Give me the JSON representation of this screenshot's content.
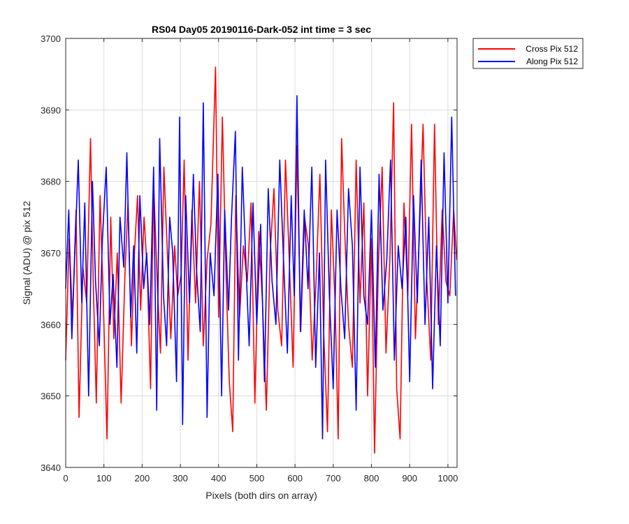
{
  "chart_data": {
    "type": "line",
    "title": "RS04 Day05 20190116-Dark-052 int time = 3 sec",
    "xlabel": "Pixels (both dirs on array)",
    "ylabel": "Signal (ADU) @ pix 512",
    "xlim": [
      0,
      1024
    ],
    "ylim": [
      3640,
      3700
    ],
    "xticks": [
      0,
      100,
      200,
      300,
      400,
      500,
      600,
      700,
      800,
      900,
      1000
    ],
    "yticks": [
      3640,
      3650,
      3660,
      3670,
      3680,
      3690,
      3700
    ],
    "grid": true,
    "legend_position": "outside-top-right",
    "series": [
      {
        "name": "Cross Pix 512",
        "color": "#ff0000",
        "x": [
          0,
          9,
          18,
          27,
          35,
          45,
          55,
          65,
          72,
          80,
          90,
          100,
          108,
          118,
          126,
          135,
          145,
          155,
          163,
          172,
          180,
          188,
          196,
          205,
          213,
          222,
          230,
          240,
          248,
          257,
          266,
          275,
          285,
          293,
          302,
          310,
          320,
          330,
          340,
          350,
          360,
          370,
          380,
          392,
          400,
          410,
          420,
          428,
          437,
          445,
          455,
          465,
          475,
          485,
          495,
          505,
          515,
          525,
          535,
          545,
          555,
          565,
          575,
          585,
          595,
          605,
          615,
          625,
          635,
          645,
          655,
          665,
          675,
          685,
          695,
          705,
          713,
          722,
          730,
          740,
          750,
          760,
          770,
          780,
          790,
          800,
          808,
          818,
          828,
          838,
          848,
          858,
          866,
          875,
          885,
          895,
          905,
          915,
          925,
          935,
          945,
          955,
          965,
          975,
          985,
          995,
          1005,
          1015,
          1023
        ],
        "values": [
          3655,
          3672,
          3661,
          3676,
          3647,
          3668,
          3663,
          3686,
          3666,
          3649,
          3678,
          3660,
          3644,
          3675,
          3658,
          3670,
          3649,
          3667,
          3677,
          3657,
          3670,
          3678,
          3662,
          3675,
          3668,
          3651,
          3680,
          3665,
          3656,
          3682,
          3670,
          3658,
          3671,
          3664,
          3667,
          3683,
          3655,
          3676,
          3663,
          3680,
          3657,
          3669,
          3674,
          3696,
          3661,
          3689,
          3666,
          3652,
          3645,
          3678,
          3661,
          3671,
          3666,
          3677,
          3649,
          3673,
          3663,
          3648,
          3670,
          3679,
          3662,
          3657,
          3683,
          3669,
          3654,
          3685,
          3659,
          3675,
          3671,
          3655,
          3666,
          3681,
          3659,
          3645,
          3676,
          3663,
          3644,
          3686,
          3673,
          3660,
          3654,
          3683,
          3663,
          3677,
          3650,
          3672,
          3642,
          3668,
          3682,
          3656,
          3669,
          3691,
          3651,
          3644,
          3677,
          3664,
          3688,
          3658,
          3672,
          3688,
          3666,
          3655,
          3688,
          3660,
          3676,
          3666,
          3664,
          3676,
          3669
        ]
      },
      {
        "name": "Along Pix 512",
        "color": "#0000ff",
        "x": [
          0,
          8,
          16,
          24,
          33,
          42,
          50,
          60,
          70,
          78,
          88,
          96,
          106,
          116,
          124,
          134,
          142,
          152,
          160,
          170,
          178,
          186,
          194,
          204,
          212,
          220,
          230,
          238,
          246,
          256,
          264,
          272,
          280,
          290,
          298,
          306,
          314,
          324,
          334,
          342,
          352,
          360,
          370,
          378,
          388,
          398,
          408,
          416,
          426,
          434,
          444,
          452,
          462,
          472,
          480,
          490,
          500,
          510,
          520,
          530,
          540,
          550,
          560,
          570,
          580,
          590,
          598,
          605,
          614,
          624,
          634,
          644,
          654,
          664,
          672,
          680,
          690,
          700,
          710,
          720,
          730,
          740,
          750,
          760,
          770,
          780,
          790,
          800,
          810,
          820,
          830,
          840,
          850,
          860,
          870,
          880,
          890,
          900,
          910,
          920,
          930,
          940,
          950,
          960,
          970,
          980,
          990,
          1000,
          1010,
          1020
        ],
        "values": [
          3665,
          3676,
          3658,
          3670,
          3683,
          3663,
          3677,
          3650,
          3680,
          3666,
          3657,
          3672,
          3682,
          3660,
          3667,
          3654,
          3675,
          3668,
          3684,
          3661,
          3671,
          3656,
          3678,
          3665,
          3670,
          3660,
          3682,
          3648,
          3686,
          3664,
          3657,
          3675,
          3670,
          3652,
          3689,
          3646,
          3678,
          3663,
          3681,
          3668,
          3659,
          3691,
          3647,
          3670,
          3664,
          3681,
          3650,
          3676,
          3662,
          3675,
          3687,
          3655,
          3682,
          3668,
          3657,
          3677,
          3660,
          3674,
          3652,
          3679,
          3666,
          3660,
          3683,
          3669,
          3656,
          3678,
          3664,
          3692,
          3659,
          3676,
          3665,
          3682,
          3654,
          3670,
          3644,
          3683,
          3664,
          3651,
          3676,
          3665,
          3658,
          3679,
          3671,
          3648,
          3682,
          3664,
          3660,
          3676,
          3654,
          3681,
          3662,
          3669,
          3683,
          3655,
          3671,
          3665,
          3675,
          3652,
          3678,
          3663,
          3683,
          3660,
          3675,
          3651,
          3671,
          3657,
          3684,
          3663,
          3689,
          3664
        ]
      }
    ]
  }
}
